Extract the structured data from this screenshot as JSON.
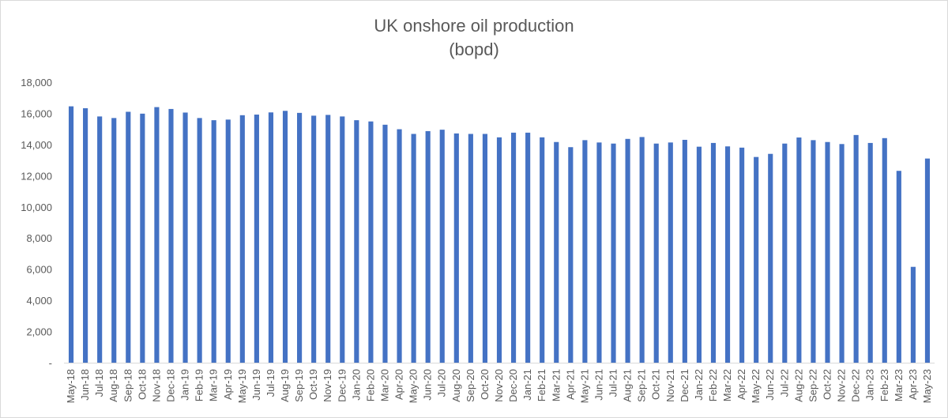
{
  "chart_data": {
    "type": "bar",
    "title": "UK onshore oil production",
    "subtitle": "(bopd)",
    "xlabel": "",
    "ylabel": "",
    "ylim": [
      0,
      18000
    ],
    "yticks": [
      0,
      2000,
      4000,
      6000,
      8000,
      10000,
      12000,
      14000,
      16000,
      18000
    ],
    "ytick_labels": [
      "-",
      "2,000",
      "4,000",
      "6,000",
      "8,000",
      "10,000",
      "12,000",
      "14,000",
      "16,000",
      "18,000"
    ],
    "grid": false,
    "legend": "none",
    "bar_color": "#4472c4",
    "categories": [
      "May-18",
      "Jun-18",
      "Jul-18",
      "Aug-18",
      "Sep-18",
      "Oct-18",
      "Nov-18",
      "Dec-18",
      "Jan-19",
      "Feb-19",
      "Mar-19",
      "Apr-19",
      "May-19",
      "Jun-19",
      "Jul-19",
      "Aug-19",
      "Sep-19",
      "Oct-19",
      "Nov-19",
      "Dec-19",
      "Jan-20",
      "Feb-20",
      "Mar-20",
      "Apr-20",
      "May-20",
      "Jun-20",
      "Jul-20",
      "Aug-20",
      "Sep-20",
      "Oct-20",
      "Nov-20",
      "Dec-20",
      "Jan-21",
      "Feb-21",
      "Mar-21",
      "Apr-21",
      "May-21",
      "Jun-21",
      "Jul-21",
      "Aug-21",
      "Sep-21",
      "Oct-21",
      "Nov-21",
      "Dec-21",
      "Jan-22",
      "Feb-22",
      "Mar-22",
      "Apr-22",
      "May-22",
      "Jun-22",
      "Jul-22",
      "Aug-22",
      "Sep-22",
      "Oct-22",
      "Nov-22",
      "Dec-22",
      "Jan-23",
      "Feb-23",
      "Mar-23",
      "Apr-23",
      "May-23"
    ],
    "values": [
      16450,
      16330,
      15800,
      15700,
      16100,
      15980,
      16400,
      16280,
      16050,
      15700,
      15560,
      15600,
      15880,
      15920,
      16060,
      16160,
      16030,
      15850,
      15900,
      15800,
      15560,
      15480,
      15270,
      14980,
      14680,
      14860,
      14950,
      14710,
      14680,
      14680,
      14460,
      14760,
      14760,
      14460,
      14160,
      13830,
      14280,
      14130,
      14060,
      14360,
      14480,
      14060,
      14130,
      14300,
      13860,
      14100,
      13880,
      13800,
      13200,
      13400,
      14060,
      14450,
      14280,
      14160,
      14030,
      14610,
      14100,
      14410,
      12310,
      6150,
      13100
    ]
  }
}
